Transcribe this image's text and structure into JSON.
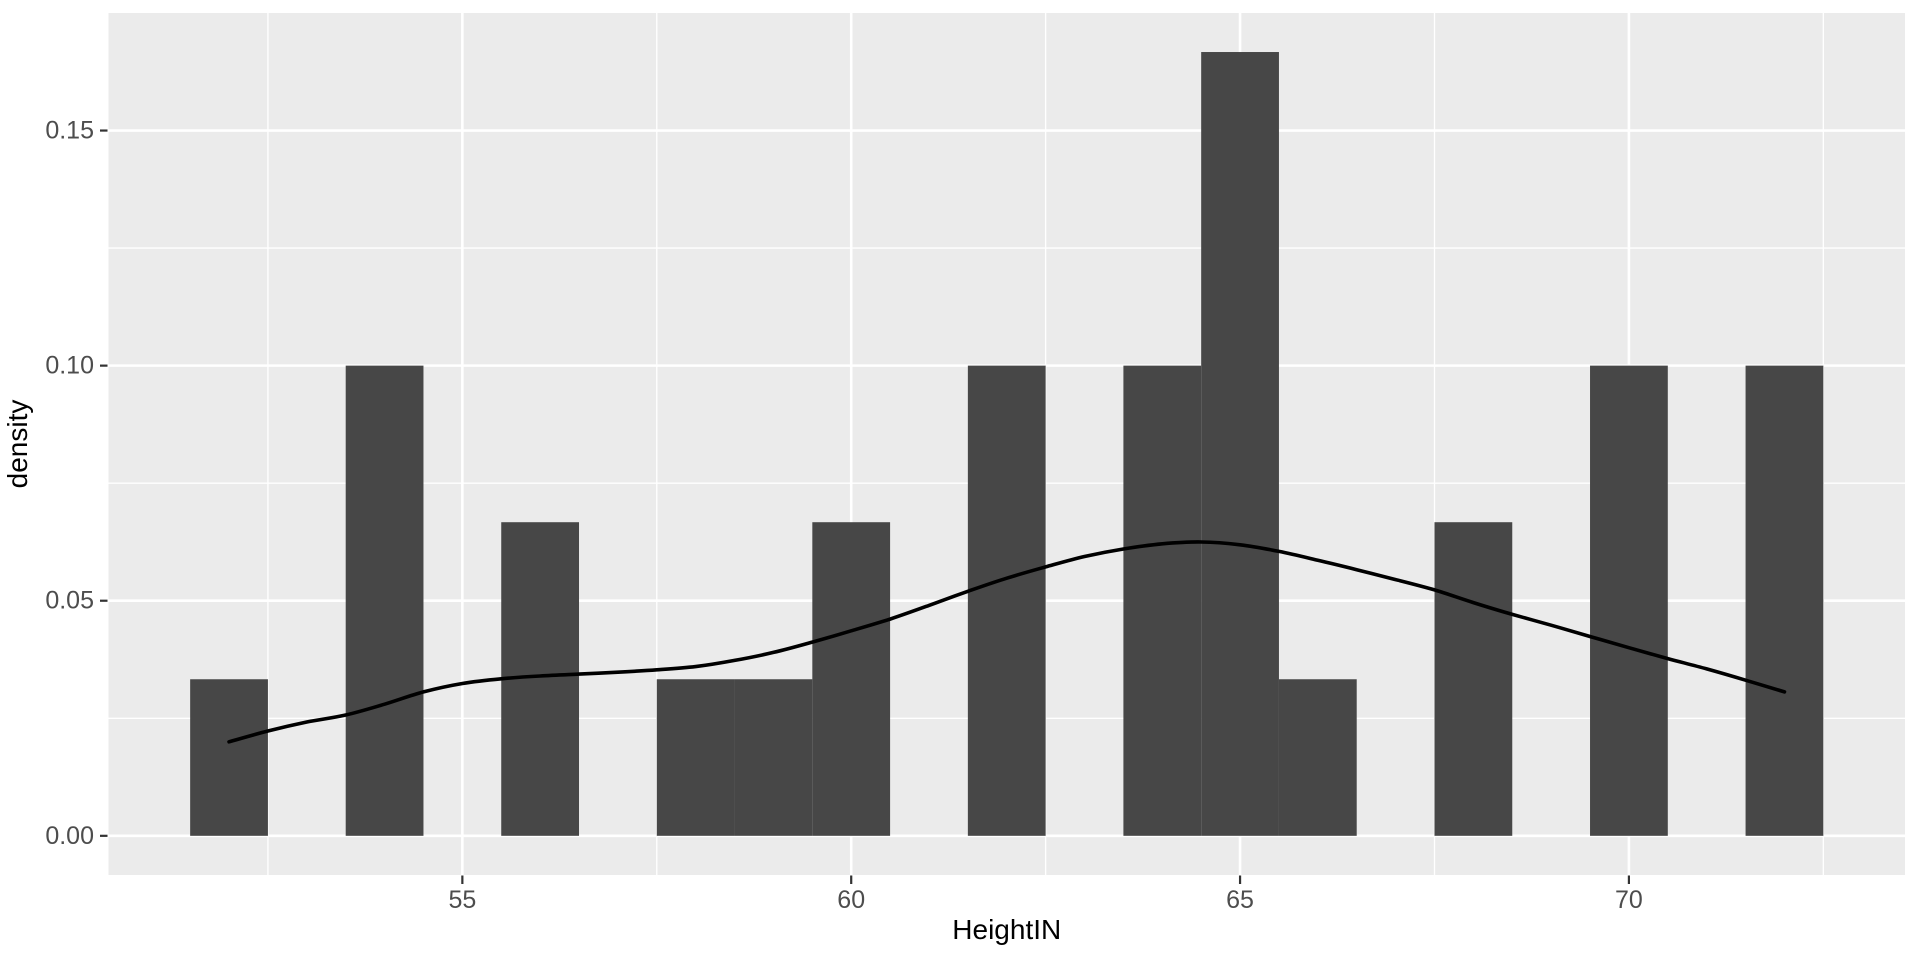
{
  "chart_data": {
    "type": "histogram+density-line",
    "title": "",
    "xlabel": "HeightIN",
    "ylabel": "density",
    "legend": "none",
    "grid": true,
    "x_range_shown": [
      50.45,
      73.55
    ],
    "y_range_shown": [
      -0.008333,
      0.175
    ],
    "x_tick_values": [
      55,
      60,
      65,
      70
    ],
    "x_tick_labels": [
      "55",
      "60",
      "65",
      "70"
    ],
    "y_tick_values": [
      0,
      0.05,
      0.1,
      0.15
    ],
    "y_tick_labels": [
      "0.00",
      "0.05",
      "0.10",
      "0.15"
    ],
    "x_minor_gridlines": [
      52.5,
      57.5,
      62.5,
      67.5,
      72.5
    ],
    "y_minor_gridlines": [
      0.025,
      0.075,
      0.125
    ],
    "histogram": {
      "binwidth": 1,
      "bars": [
        {
          "center": 52,
          "density": 0.0333
        },
        {
          "center": 54,
          "density": 0.1
        },
        {
          "center": 56,
          "density": 0.0667
        },
        {
          "center": 58,
          "density": 0.0333
        },
        {
          "center": 59,
          "density": 0.0333
        },
        {
          "center": 60,
          "density": 0.0667
        },
        {
          "center": 62,
          "density": 0.1
        },
        {
          "center": 64,
          "density": 0.1
        },
        {
          "center": 65,
          "density": 0.1667
        },
        {
          "center": 66,
          "density": 0.0333
        },
        {
          "center": 68,
          "density": 0.0667
        },
        {
          "center": 70,
          "density": 0.1
        },
        {
          "center": 72,
          "density": 0.1
        }
      ]
    },
    "density_curve": {
      "x": [
        52,
        52.5,
        53,
        53.5,
        54,
        54.5,
        55,
        55.5,
        56,
        56.5,
        57,
        57.5,
        58,
        58.5,
        59,
        59.5,
        60,
        60.5,
        61,
        61.5,
        62,
        62.5,
        63,
        63.5,
        64,
        64.5,
        65,
        65.5,
        66,
        66.5,
        67,
        67.5,
        68,
        68.5,
        69,
        69.5,
        70,
        70.5,
        71,
        71.5,
        72
      ],
      "y": [
        0.02,
        0.0223,
        0.0242,
        0.0257,
        0.028,
        0.0306,
        0.0324,
        0.0334,
        0.034,
        0.0344,
        0.0348,
        0.0353,
        0.036,
        0.0373,
        0.039,
        0.0412,
        0.0436,
        0.0461,
        0.049,
        0.052,
        0.0548,
        0.0572,
        0.0594,
        0.061,
        0.0621,
        0.0625,
        0.0619,
        0.0605,
        0.0586,
        0.0566,
        0.0545,
        0.0523,
        0.0496,
        0.0471,
        0.0448,
        0.0424,
        0.04,
        0.0377,
        0.0355,
        0.0331,
        0.0306
      ]
    },
    "colors": {
      "background": "#FFFFFF",
      "panel_bg": "#EBEBEB",
      "grid": "#FFFFFF",
      "bar_fill": "#474747",
      "curve": "#000000",
      "tick_mark": "#333333",
      "axis_text": "#4D4D4D",
      "axis_title": "#000000"
    }
  }
}
